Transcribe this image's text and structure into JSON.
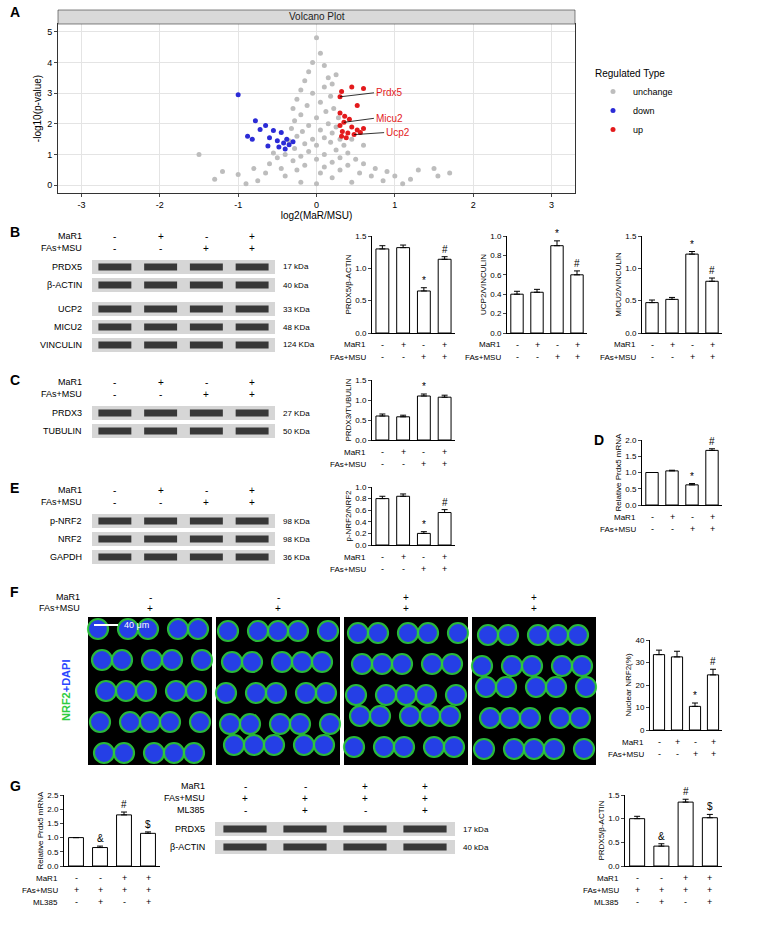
{
  "chart_data": [
    {
      "panel": "A",
      "type": "scatter",
      "title": "Volcano Plot",
      "x_label": "log2(MaR/MSU)",
      "y_label": "-log10(p-value)",
      "xlim": [
        -3.3,
        3.3
      ],
      "xticks": [
        -3,
        -2,
        -1,
        0,
        1,
        2,
        3
      ],
      "ylim": [
        -0.25,
        5.25
      ],
      "yticks": [
        0,
        1,
        2,
        3,
        4,
        5
      ],
      "grid": true,
      "legend": "right",
      "legend_title": "Regulated Type",
      "series": [
        {
          "name": "unchange",
          "color": "#bdbdbd",
          "x": [
            0,
            0.05,
            -0.05,
            0.1,
            -0.1,
            0.15,
            -0.15,
            0.2,
            0.25,
            -0.2,
            0.1,
            -0.05,
            0.18,
            -0.25,
            0.05,
            -0.12,
            0.22,
            -0.3,
            0.12,
            -0.2,
            0.28,
            0,
            -0.28,
            0.15,
            -0.1,
            0.25,
            -0.32,
            0.05,
            -0.18,
            0.2,
            -0.25,
            0.1,
            0.3,
            -0.05,
            -0.35,
            0.18,
            -0.15,
            0.35,
            0,
            -0.28,
            0.25,
            -0.1,
            0.4,
            0.1,
            -0.4,
            -0.2,
            0.3,
            0.5,
            -0.5,
            0,
            -0.3,
            0.2,
            0.6,
            -0.6,
            0.4,
            -0.15,
            0.1,
            -0.45,
            0.75,
            -0.8,
            0.3,
            -0.25,
            0.9,
            0.55,
            -0.65,
            0.05,
            1,
            -1,
            0.7,
            -0.4,
            0.2,
            1.3,
            1.5,
            1.7,
            1.55,
            1.2,
            -1.5,
            -1.2,
            -1.3,
            0.85,
            -0.75,
            0.45,
            -0.2,
            0,
            1.1,
            -0.9,
            0.6,
            -0.55,
            0.45
          ],
          "y": [
            4.8,
            4.3,
            4,
            3.9,
            3.7,
            3.5,
            3.4,
            3.3,
            3.6,
            3.1,
            3.2,
            3,
            2.9,
            2.8,
            2.7,
            2.6,
            2.5,
            2.5,
            2.4,
            2.3,
            2.2,
            2.2,
            2.1,
            2,
            1.95,
            1.9,
            1.85,
            1.8,
            1.75,
            1.7,
            1.6,
            1.55,
            1.5,
            1.5,
            1.45,
            1.4,
            1.35,
            1.3,
            1.3,
            1.2,
            1.15,
            1.1,
            1.05,
            1,
            1,
            0.95,
            0.9,
            0.85,
            0.9,
            0.85,
            0.8,
            0.75,
            0.7,
            0.7,
            0.65,
            0.65,
            0.6,
            0.55,
            0.55,
            0.55,
            0.5,
            0.5,
            0.45,
            0.4,
            0.4,
            0.4,
            0.3,
            0.35,
            0.3,
            0.3,
            0.25,
            0.5,
            0.55,
            0.4,
            0.3,
            0.2,
            1,
            0.45,
            0.2,
            0.15,
            0.15,
            0.1,
            0.1,
            0.05,
            0.05,
            0.05,
            1.3,
            1.05,
            1.5
          ]
        },
        {
          "name": "down",
          "color": "#2b2bd6",
          "x": [
            -1,
            -0.78,
            -0.65,
            -0.72,
            -0.55,
            -0.45,
            -0.88,
            -0.6,
            -0.82,
            -0.38,
            -0.5,
            -0.42,
            -0.35,
            -0.62,
            -0.48,
            -0.4,
            -0.3
          ],
          "y": [
            2.95,
            2.1,
            1.95,
            1.82,
            1.78,
            1.72,
            1.6,
            1.55,
            1.5,
            1.5,
            1.45,
            1.38,
            1.32,
            1.28,
            1.25,
            1.18,
            1.42
          ]
        },
        {
          "name": "up",
          "color": "#e31a1c",
          "x": [
            0.45,
            0.6,
            0.32,
            0.3,
            0.52,
            0.3,
            0.36,
            0.42,
            0.35,
            0.3,
            0.45,
            0.52,
            0.33,
            0.4,
            0.48,
            0.56,
            0.32,
            0.38,
            0.6
          ],
          "y": [
            3.2,
            3.15,
            3.05,
            2.88,
            2.6,
            2.35,
            2.25,
            2.15,
            2.05,
            1.95,
            1.9,
            1.8,
            1.75,
            1.7,
            1.65,
            1.72,
            1.6,
            1.55,
            1.85
          ]
        }
      ],
      "annotations": [
        {
          "text": "Prdx5",
          "x": 0.3,
          "y": 2.88,
          "color": "#e31a1c"
        },
        {
          "text": "Micu2",
          "x": 0.35,
          "y": 2.05,
          "color": "#e31a1c"
        },
        {
          "text": "Ucp2",
          "x": 0.48,
          "y": 1.65,
          "color": "#e31a1c"
        }
      ]
    },
    {
      "type": "bar",
      "y_label": "PRDX5/β-ACTIN",
      "color": "#ffffff",
      "ylim": [
        0,
        1.5
      ],
      "yticks": [
        {
          "value": 0,
          "label": "0.0"
        },
        {
          "value": 0.5,
          "label": "0.5"
        },
        {
          "value": 1,
          "label": "1.0"
        },
        {
          "value": 1.5,
          "label": "1.5"
        }
      ],
      "values": [
        1.3,
        1.32,
        0.65,
        1.14
      ],
      "errors": [
        0.05,
        0.04,
        0.05,
        0.04
      ],
      "marks": [
        null,
        null,
        "*",
        "#"
      ],
      "conditions": [
        {
          "label": "MaR1",
          "marks": [
            "-",
            "+",
            "-",
            "+"
          ]
        },
        {
          "label": "FAs+MSU",
          "marks": [
            "-",
            "-",
            "+",
            "+"
          ]
        }
      ]
    },
    {
      "type": "bar",
      "y_label": "UCP2/VINCULIN",
      "color": "#ffffff",
      "ylim": [
        0,
        1
      ],
      "yticks": [
        {
          "value": 0,
          "label": "0.0"
        },
        {
          "value": 0.2,
          "label": "0.2"
        },
        {
          "value": 0.4,
          "label": "0.4"
        },
        {
          "value": 0.6,
          "label": "0.6"
        },
        {
          "value": 0.8,
          "label": "0.8"
        },
        {
          "value": 1,
          "label": "1.0"
        }
      ],
      "values": [
        0.4,
        0.42,
        0.9,
        0.6
      ],
      "errors": [
        0.03,
        0.03,
        0.05,
        0.04
      ],
      "marks": [
        null,
        null,
        "*",
        "#"
      ],
      "conditions": [
        {
          "label": "MaR1",
          "marks": [
            "-",
            "+",
            "-",
            "+"
          ]
        },
        {
          "label": "FAs+MSU",
          "marks": [
            "-",
            "-",
            "+",
            "+"
          ]
        }
      ]
    },
    {
      "type": "bar",
      "y_label": "MICU2/VINCULIN",
      "color": "#ffffff",
      "ylim": [
        0,
        1.5
      ],
      "yticks": [
        {
          "value": 0,
          "label": "0.0"
        },
        {
          "value": 0.5,
          "label": "0.5"
        },
        {
          "value": 1,
          "label": "1.0"
        },
        {
          "value": 1.5,
          "label": "1.5"
        }
      ],
      "values": [
        0.47,
        0.52,
        1.22,
        0.8
      ],
      "errors": [
        0.04,
        0.03,
        0.04,
        0.05
      ],
      "marks": [
        null,
        null,
        "*",
        "#"
      ],
      "conditions": [
        {
          "label": "MaR1",
          "marks": [
            "-",
            "+",
            "-",
            "+"
          ]
        },
        {
          "label": "FAs+MSU",
          "marks": [
            "-",
            "-",
            "+",
            "+"
          ]
        }
      ]
    },
    {
      "type": "bar",
      "y_label": "PRDX3/TUBULIN",
      "color": "#ffffff",
      "ylim": [
        0,
        1.5
      ],
      "yticks": [
        {
          "value": 0,
          "label": "0.0"
        },
        {
          "value": 0.5,
          "label": "0.5"
        },
        {
          "value": 1,
          "label": "1.0"
        },
        {
          "value": 1.5,
          "label": "1.5"
        }
      ],
      "values": [
        0.6,
        0.58,
        1.1,
        1.07
      ],
      "errors": [
        0.05,
        0.04,
        0.05,
        0.05
      ],
      "marks": [
        null,
        null,
        "*",
        null
      ],
      "conditions": [
        {
          "label": "MaR1",
          "marks": [
            "-",
            "+",
            "-",
            "+"
          ]
        },
        {
          "label": "FAs+MSU",
          "marks": [
            "-",
            "-",
            "+",
            "+"
          ]
        }
      ]
    },
    {
      "panel": "D",
      "type": "bar",
      "y_label": "Relative Prdx5 mRNA",
      "color": "#ffffff",
      "ylim": [
        0,
        2
      ],
      "yticks": [
        {
          "value": 0,
          "label": "0.0"
        },
        {
          "value": 0.5,
          "label": "0.5"
        },
        {
          "value": 1,
          "label": "1.0"
        },
        {
          "value": 1.5,
          "label": "1.5"
        },
        {
          "value": 2,
          "label": "2.0"
        }
      ],
      "values": [
        1,
        1.05,
        0.62,
        1.68
      ],
      "errors": [
        0,
        0.02,
        0.04,
        0.05
      ],
      "marks": [
        null,
        null,
        "*",
        "#"
      ],
      "conditions": [
        {
          "label": "MaR1",
          "marks": [
            "-",
            "+",
            "-",
            "+"
          ]
        },
        {
          "label": "FAs+MSU",
          "marks": [
            "-",
            "-",
            "+",
            "+"
          ]
        }
      ]
    },
    {
      "type": "bar",
      "y_label": "p-NRF2/NRF2",
      "color": "#ffffff",
      "ylim": [
        0,
        1
      ],
      "yticks": [
        {
          "value": 0,
          "label": "0.0"
        },
        {
          "value": 0.2,
          "label": "0.2"
        },
        {
          "value": 0.4,
          "label": "0.4"
        },
        {
          "value": 0.6,
          "label": "0.6"
        },
        {
          "value": 0.8,
          "label": "0.8"
        },
        {
          "value": 1,
          "label": "1.0"
        }
      ],
      "values": [
        0.8,
        0.84,
        0.2,
        0.56
      ],
      "errors": [
        0.04,
        0.04,
        0.03,
        0.05
      ],
      "marks": [
        null,
        null,
        "*",
        "#"
      ],
      "conditions": [
        {
          "label": "MaR1",
          "marks": [
            "-",
            "+",
            "-",
            "+"
          ]
        },
        {
          "label": "FAs+MSU",
          "marks": [
            "-",
            "-",
            "+",
            "+"
          ]
        }
      ]
    },
    {
      "type": "bar",
      "y_label": "Nuclear NRF2(%)",
      "color": "#ffffff",
      "ylim": [
        0,
        40
      ],
      "yticks": [
        0,
        10,
        20,
        30,
        40
      ],
      "values": [
        33.5,
        32.5,
        10.5,
        24.5
      ],
      "errors": [
        2,
        2.5,
        1.5,
        2.5
      ],
      "marks": [
        null,
        null,
        "*",
        "#"
      ],
      "conditions": [
        {
          "label": "MaR1",
          "marks": [
            "-",
            "+",
            "-",
            "+"
          ]
        },
        {
          "label": "FAs+MSU",
          "marks": [
            "-",
            "-",
            "+",
            "+"
          ]
        }
      ]
    },
    {
      "type": "bar",
      "y_label": "Relative Prdx5 mRNA",
      "color": "#ffffff",
      "ylim": [
        0,
        2.5
      ],
      "yticks": [
        {
          "value": 0,
          "label": "0.0"
        },
        {
          "value": 0.5,
          "label": "0.5"
        },
        {
          "value": 1,
          "label": "1.0"
        },
        {
          "value": 1.5,
          "label": "1.5"
        },
        {
          "value": 2,
          "label": "2.0"
        },
        {
          "value": 2.5,
          "label": "2.5"
        }
      ],
      "values": [
        1,
        0.65,
        1.8,
        1.15
      ],
      "errors": [
        0,
        0.05,
        0.1,
        0.05
      ],
      "marks": [
        null,
        "&",
        "#",
        "$"
      ],
      "conditions": [
        {
          "label": "MaR1",
          "marks": [
            "-",
            "-",
            "+",
            "+"
          ]
        },
        {
          "label": "FAs+MSU",
          "marks": [
            "+",
            "+",
            "+",
            "+"
          ]
        },
        {
          "label": "ML385",
          "marks": [
            "-",
            "+",
            "-",
            "+"
          ]
        }
      ]
    },
    {
      "type": "bar",
      "y_label": "PRDX5/β-ACTIN",
      "color": "#ffffff",
      "ylim": [
        0,
        1.5
      ],
      "yticks": [
        {
          "value": 0,
          "label": "0.0"
        },
        {
          "value": 0.5,
          "label": "0.5"
        },
        {
          "value": 1,
          "label": "1.0"
        },
        {
          "value": 1.5,
          "label": "1.5"
        }
      ],
      "values": [
        1,
        0.42,
        1.35,
        1.02
      ],
      "errors": [
        0.05,
        0.05,
        0.06,
        0.07
      ],
      "marks": [
        null,
        "&",
        "#",
        "$"
      ],
      "conditions": [
        {
          "label": "MaR1",
          "marks": [
            "-",
            "-",
            "+",
            "+"
          ]
        },
        {
          "label": "FAs+MSU",
          "marks": [
            "+",
            "+",
            "+",
            "+"
          ]
        },
        {
          "label": "ML385",
          "marks": [
            "-",
            "+",
            "-",
            "+"
          ]
        }
      ]
    }
  ],
  "blots": [
    {
      "panel": "B",
      "conditions": [
        {
          "label": "MaR1",
          "marks": [
            "-",
            "+",
            "-",
            "+"
          ]
        },
        {
          "label": "FAs+MSU",
          "marks": [
            "-",
            "-",
            "+",
            "+"
          ]
        }
      ],
      "groups": [
        [
          {
            "protein": "PRDX5",
            "size": "17 kDa"
          },
          {
            "protein": "β-ACTIN",
            "size": "40 kDa"
          }
        ],
        [
          {
            "protein": "UCP2",
            "size": "33 KDa"
          },
          {
            "protein": "MICU2",
            "size": "48 KDa"
          },
          {
            "protein": "VINCULIN",
            "size": "124 KDa"
          }
        ]
      ]
    },
    {
      "panel": "C",
      "conditions": [
        {
          "label": "MaR1",
          "marks": [
            "-",
            "+",
            "-",
            "+"
          ]
        },
        {
          "label": "FAs+MSU",
          "marks": [
            "-",
            "-",
            "+",
            "+"
          ]
        }
      ],
      "groups": [
        [
          {
            "protein": "PRDX3",
            "size": "27 KDa"
          },
          {
            "protein": "TUBULIN",
            "size": "50 KDa"
          }
        ]
      ]
    },
    {
      "panel": "E",
      "conditions": [
        {
          "label": "MaR1",
          "marks": [
            "-",
            "+",
            "-",
            "+"
          ]
        },
        {
          "label": "FAs+MSU",
          "marks": [
            "-",
            "-",
            "+",
            "+"
          ]
        }
      ],
      "groups": [
        [
          {
            "protein": "p-NRF2",
            "size": "98 KDa"
          },
          {
            "protein": "NRF2",
            "size": "98 KDa"
          },
          {
            "protein": "GAPDH",
            "size": "36 KDa"
          }
        ]
      ]
    },
    {
      "panel": "G",
      "conditions": [
        {
          "label": "MaR1",
          "marks": [
            "-",
            "-",
            "+",
            "+"
          ]
        },
        {
          "label": "FAs+MSU",
          "marks": [
            "+",
            "+",
            "+",
            "+"
          ]
        },
        {
          "label": "ML385",
          "marks": [
            "-",
            "+",
            "-",
            "+"
          ]
        }
      ],
      "groups": [
        [
          {
            "protein": "PRDX5",
            "size": "17 kDa"
          },
          {
            "protein": "β-ACTIN",
            "size": "40 kDa"
          }
        ]
      ]
    }
  ],
  "images": {
    "panel": "F",
    "conditions": [
      {
        "label": "MaR1",
        "marks": [
          "-",
          "-",
          "+",
          "+"
        ]
      },
      {
        "label": "FAs+MSU",
        "marks": [
          "+",
          "+",
          "+",
          "+"
        ]
      }
    ],
    "stain": [
      {
        "text": "NRF2",
        "color": "#2ecc40"
      },
      {
        "text": "+DAPI",
        "color": "#2a46ff"
      }
    ],
    "scale_bar": "40 μm"
  }
}
